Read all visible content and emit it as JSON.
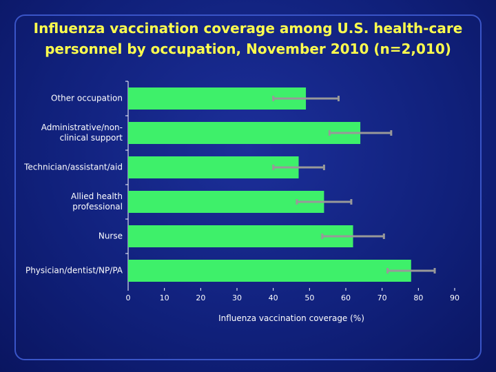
{
  "chart_data": {
    "type": "bar",
    "orientation": "horizontal",
    "title": "Influenza vaccination coverage among U.S. health-care personnel by occupation, November 2010 (n=2,010)",
    "x_label": "Influenza vaccination coverage (%)",
    "categories": [
      "Other occupation",
      "Administrative/non-clinical support",
      "Technician/assistant/aid",
      "Allied health professional",
      "Nurse",
      "Physician/dentist/NP/PA"
    ],
    "values": [
      49,
      64,
      47,
      54,
      62,
      78
    ],
    "errors": [
      9,
      8.5,
      7,
      7.5,
      8.5,
      6.5
    ],
    "color": "#3ef06a",
    "error_color": "#999999",
    "xlim": [
      0,
      90
    ],
    "xticks": [
      0,
      10,
      20,
      30,
      40,
      50,
      60,
      70,
      80,
      90
    ]
  }
}
